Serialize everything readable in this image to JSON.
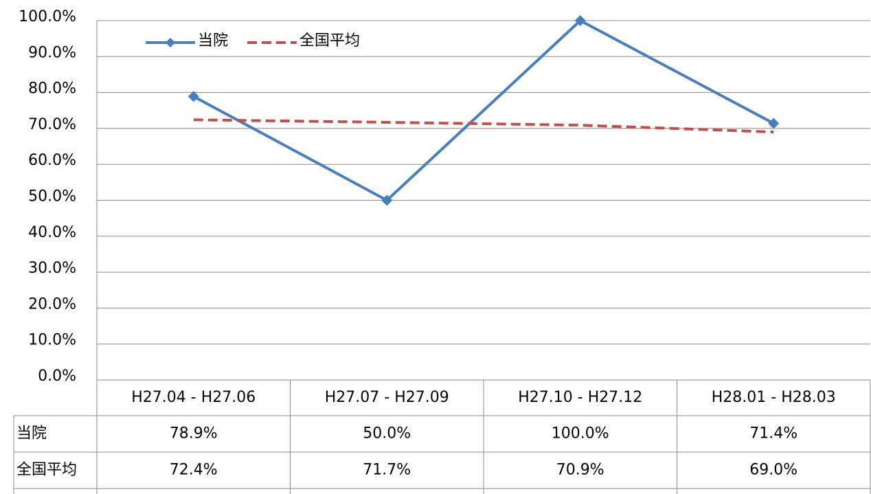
{
  "chart_data": {
    "type": "line",
    "categories": [
      "H27.04 - H27.06",
      "H27.07 - H27.09",
      "H27.10 - H27.12",
      "H28.01 - H28.03"
    ],
    "series": [
      {
        "name": "当院",
        "color": "#4a7ebb",
        "marker": "diamond",
        "dashed": false,
        "values": [
          78.9,
          50.0,
          100.0,
          71.4
        ],
        "value_labels": [
          "78.9%",
          "50.0%",
          "100.0%",
          "71.4%"
        ]
      },
      {
        "name": "全国平均",
        "color": "#c0504d",
        "marker": "none",
        "dashed": true,
        "values": [
          72.4,
          71.7,
          70.9,
          69.0
        ],
        "value_labels": [
          "72.4%",
          "71.7%",
          "70.9%",
          "69.0%"
        ]
      }
    ],
    "ylim": [
      0,
      100
    ],
    "yticks": [
      {
        "value": 0,
        "label": "0.0%"
      },
      {
        "value": 10,
        "label": "10.0%"
      },
      {
        "value": 20,
        "label": "20.0%"
      },
      {
        "value": 30,
        "label": "30.0%"
      },
      {
        "value": 40,
        "label": "40.0%"
      },
      {
        "value": 50,
        "label": "50.0%"
      },
      {
        "value": 60,
        "label": "60.0%"
      },
      {
        "value": 70,
        "label": "70.0%"
      },
      {
        "value": 80,
        "label": "80.0%"
      },
      {
        "value": 90,
        "label": "90.0%"
      },
      {
        "value": 100,
        "label": "100.0%"
      }
    ],
    "grid": true,
    "legend": "top-left",
    "data_table": true
  }
}
